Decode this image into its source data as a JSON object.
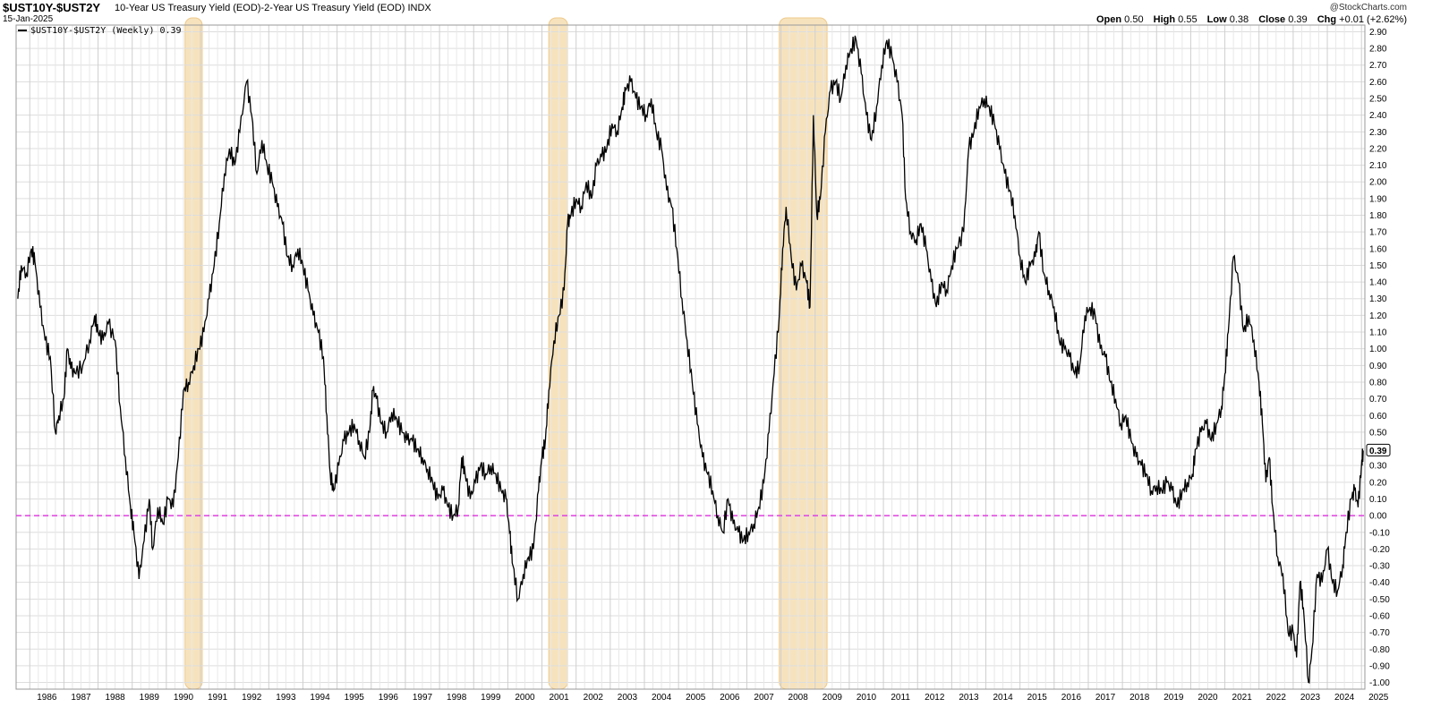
{
  "header": {
    "symbol": "$UST10Y-$UST2Y",
    "description": "10-Year US Treasury Yield (EOD)-2-Year US Treasury Yield (EOD)",
    "exchange": "INDX",
    "date": "15-Jan-2025",
    "credit": "@StockCharts.com",
    "ohlc": {
      "open_label": "Open",
      "open": "0.50",
      "high_label": "High",
      "high": "0.55",
      "low_label": "Low",
      "low": "0.38",
      "close_label": "Close",
      "close": "0.39",
      "chg_label": "Chg",
      "chg": "+0.01 (+2.62%)"
    }
  },
  "legend": {
    "label": "$UST10Y-$UST2Y (Weekly) 0.39"
  },
  "colors": {
    "line": "#000000",
    "recession": "#f5deb3",
    "recession_edge": "#efc98a",
    "zero_line": "#e040e0",
    "grid": "#dddddd"
  },
  "chart_data": {
    "type": "line",
    "title": "$UST10Y-$UST2Y",
    "xlabel": "",
    "ylabel": "",
    "xlim": [
      1985.6,
      2025.1
    ],
    "ylim": [
      -1.04,
      2.94
    ],
    "grid": true,
    "legend_position": "top-left",
    "last_value": "0.39",
    "y_ticks": [
      "2.90",
      "2.80",
      "2.70",
      "2.60",
      "2.50",
      "2.40",
      "2.30",
      "2.20",
      "2.10",
      "2.00",
      "1.90",
      "1.80",
      "1.70",
      "1.60",
      "1.50",
      "1.40",
      "1.30",
      "1.20",
      "1.10",
      "1.00",
      "0.90",
      "0.80",
      "0.70",
      "0.60",
      "0.50",
      "0.40",
      "0.30",
      "0.20",
      "0.10",
      "0.00",
      "-0.10",
      "-0.20",
      "-0.30",
      "-0.40",
      "-0.50",
      "-0.60",
      "-0.70",
      "-0.80",
      "-0.90",
      "-1.00"
    ],
    "x_ticks": [
      "1986",
      "1987",
      "1988",
      "1989",
      "1990",
      "1991",
      "1992",
      "1993",
      "1994",
      "1995",
      "1996",
      "1997",
      "1998",
      "1999",
      "2000",
      "2001",
      "2002",
      "2003",
      "2004",
      "2005",
      "2006",
      "2007",
      "2008",
      "2009",
      "2010",
      "2011",
      "2012",
      "2013",
      "2014",
      "2015",
      "2016",
      "2017",
      "2018",
      "2019",
      "2020",
      "2021",
      "2022",
      "2023",
      "2024",
      "2025"
    ],
    "reference_line": {
      "y": 0.0,
      "style": "dashed"
    },
    "recessions": [
      [
        1990.55,
        1991.05
      ],
      [
        2001.2,
        2001.75
      ],
      [
        2007.95,
        2009.35
      ]
    ],
    "series": [
      {
        "points": [
          [
            1985.65,
            1.3
          ],
          [
            1985.75,
            1.5
          ],
          [
            1985.9,
            1.45
          ],
          [
            1986.05,
            1.6
          ],
          [
            1986.15,
            1.52
          ],
          [
            1986.3,
            1.25
          ],
          [
            1986.45,
            1.05
          ],
          [
            1986.6,
            0.95
          ],
          [
            1986.75,
            0.5
          ],
          [
            1986.85,
            0.6
          ],
          [
            1987.0,
            0.7
          ],
          [
            1987.1,
            1.0
          ],
          [
            1987.2,
            0.88
          ],
          [
            1987.35,
            0.85
          ],
          [
            1987.55,
            0.9
          ],
          [
            1987.75,
            1.05
          ],
          [
            1987.9,
            1.2
          ],
          [
            1988.0,
            1.1
          ],
          [
            1988.15,
            1.05
          ],
          [
            1988.3,
            1.15
          ],
          [
            1988.5,
            1.05
          ],
          [
            1988.65,
            0.65
          ],
          [
            1988.8,
            0.35
          ],
          [
            1988.95,
            0.05
          ],
          [
            1989.05,
            -0.1
          ],
          [
            1989.2,
            -0.38
          ],
          [
            1989.35,
            -0.15
          ],
          [
            1989.5,
            0.1
          ],
          [
            1989.6,
            -0.2
          ],
          [
            1989.75,
            0.05
          ],
          [
            1989.9,
            -0.05
          ],
          [
            1990.05,
            0.1
          ],
          [
            1990.2,
            0.05
          ],
          [
            1990.35,
            0.35
          ],
          [
            1990.5,
            0.75
          ],
          [
            1990.65,
            0.8
          ],
          [
            1990.8,
            0.9
          ],
          [
            1990.95,
            1.0
          ],
          [
            1991.1,
            1.1
          ],
          [
            1991.25,
            1.3
          ],
          [
            1991.4,
            1.5
          ],
          [
            1991.55,
            1.75
          ],
          [
            1991.7,
            2.05
          ],
          [
            1991.85,
            2.2
          ],
          [
            1992.0,
            2.1
          ],
          [
            1992.15,
            2.3
          ],
          [
            1992.35,
            2.6
          ],
          [
            1992.5,
            2.4
          ],
          [
            1992.65,
            2.05
          ],
          [
            1992.8,
            2.25
          ],
          [
            1992.95,
            2.1
          ],
          [
            1993.1,
            2.0
          ],
          [
            1993.25,
            1.85
          ],
          [
            1993.4,
            1.75
          ],
          [
            1993.55,
            1.55
          ],
          [
            1993.7,
            1.5
          ],
          [
            1993.85,
            1.6
          ],
          [
            1994.0,
            1.5
          ],
          [
            1994.15,
            1.35
          ],
          [
            1994.3,
            1.2
          ],
          [
            1994.45,
            1.1
          ],
          [
            1994.6,
            0.95
          ],
          [
            1994.7,
            0.6
          ],
          [
            1994.8,
            0.25
          ],
          [
            1994.9,
            0.15
          ],
          [
            1995.05,
            0.3
          ],
          [
            1995.2,
            0.45
          ],
          [
            1995.35,
            0.5
          ],
          [
            1995.5,
            0.55
          ],
          [
            1995.65,
            0.45
          ],
          [
            1995.8,
            0.35
          ],
          [
            1995.95,
            0.5
          ],
          [
            1996.05,
            0.75
          ],
          [
            1996.15,
            0.7
          ],
          [
            1996.3,
            0.55
          ],
          [
            1996.45,
            0.5
          ],
          [
            1996.6,
            0.62
          ],
          [
            1996.75,
            0.58
          ],
          [
            1996.9,
            0.5
          ],
          [
            1997.05,
            0.45
          ],
          [
            1997.2,
            0.45
          ],
          [
            1997.35,
            0.4
          ],
          [
            1997.5,
            0.35
          ],
          [
            1997.65,
            0.28
          ],
          [
            1997.8,
            0.2
          ],
          [
            1997.95,
            0.1
          ],
          [
            1998.1,
            0.15
          ],
          [
            1998.25,
            0.05
          ],
          [
            1998.4,
            0.0
          ],
          [
            1998.55,
            0.05
          ],
          [
            1998.65,
            0.35
          ],
          [
            1998.75,
            0.25
          ],
          [
            1998.9,
            0.1
          ],
          [
            1999.05,
            0.2
          ],
          [
            1999.2,
            0.3
          ],
          [
            1999.35,
            0.25
          ],
          [
            1999.5,
            0.3
          ],
          [
            1999.65,
            0.25
          ],
          [
            1999.8,
            0.15
          ],
          [
            1999.95,
            0.1
          ],
          [
            2000.05,
            -0.1
          ],
          [
            2000.15,
            -0.3
          ],
          [
            2000.3,
            -0.5
          ],
          [
            2000.45,
            -0.35
          ],
          [
            2000.6,
            -0.25
          ],
          [
            2000.75,
            -0.2
          ],
          [
            2000.9,
            0.15
          ],
          [
            2001.0,
            0.35
          ],
          [
            2001.1,
            0.45
          ],
          [
            2001.2,
            0.75
          ],
          [
            2001.35,
            1.05
          ],
          [
            2001.5,
            1.2
          ],
          [
            2001.65,
            1.35
          ],
          [
            2001.75,
            1.75
          ],
          [
            2001.85,
            1.8
          ],
          [
            2002.0,
            1.9
          ],
          [
            2002.15,
            1.85
          ],
          [
            2002.3,
            2.0
          ],
          [
            2002.45,
            1.9
          ],
          [
            2002.6,
            2.1
          ],
          [
            2002.75,
            2.15
          ],
          [
            2002.9,
            2.2
          ],
          [
            2003.05,
            2.35
          ],
          [
            2003.2,
            2.3
          ],
          [
            2003.35,
            2.45
          ],
          [
            2003.45,
            2.55
          ],
          [
            2003.6,
            2.6
          ],
          [
            2003.75,
            2.5
          ],
          [
            2003.9,
            2.45
          ],
          [
            2004.05,
            2.4
          ],
          [
            2004.2,
            2.5
          ],
          [
            2004.35,
            2.3
          ],
          [
            2004.5,
            2.2
          ],
          [
            2004.65,
            1.95
          ],
          [
            2004.8,
            1.85
          ],
          [
            2004.95,
            1.6
          ],
          [
            2005.1,
            1.3
          ],
          [
            2005.25,
            1.05
          ],
          [
            2005.4,
            0.8
          ],
          [
            2005.55,
            0.55
          ],
          [
            2005.7,
            0.35
          ],
          [
            2005.85,
            0.25
          ],
          [
            2006.0,
            0.15
          ],
          [
            2006.15,
            0.0
          ],
          [
            2006.3,
            -0.1
          ],
          [
            2006.45,
            0.1
          ],
          [
            2006.6,
            -0.05
          ],
          [
            2006.75,
            -0.1
          ],
          [
            2006.9,
            -0.15
          ],
          [
            2007.05,
            -0.1
          ],
          [
            2007.2,
            -0.05
          ],
          [
            2007.35,
            0.05
          ],
          [
            2007.5,
            0.2
          ],
          [
            2007.65,
            0.5
          ],
          [
            2007.8,
            0.85
          ],
          [
            2007.95,
            1.2
          ],
          [
            2008.05,
            1.6
          ],
          [
            2008.15,
            1.85
          ],
          [
            2008.3,
            1.55
          ],
          [
            2008.45,
            1.35
          ],
          [
            2008.6,
            1.5
          ],
          [
            2008.75,
            1.4
          ],
          [
            2008.85,
            1.25
          ],
          [
            2008.95,
            2.4
          ],
          [
            2009.05,
            1.8
          ],
          [
            2009.15,
            1.9
          ],
          [
            2009.3,
            2.3
          ],
          [
            2009.45,
            2.55
          ],
          [
            2009.6,
            2.6
          ],
          [
            2009.75,
            2.5
          ],
          [
            2009.9,
            2.7
          ],
          [
            2010.05,
            2.8
          ],
          [
            2010.2,
            2.85
          ],
          [
            2010.35,
            2.65
          ],
          [
            2010.5,
            2.4
          ],
          [
            2010.65,
            2.25
          ],
          [
            2010.8,
            2.45
          ],
          [
            2010.95,
            2.7
          ],
          [
            2011.1,
            2.85
          ],
          [
            2011.25,
            2.75
          ],
          [
            2011.4,
            2.6
          ],
          [
            2011.55,
            2.4
          ],
          [
            2011.65,
            1.9
          ],
          [
            2011.8,
            1.7
          ],
          [
            2011.95,
            1.65
          ],
          [
            2012.1,
            1.75
          ],
          [
            2012.25,
            1.6
          ],
          [
            2012.4,
            1.4
          ],
          [
            2012.55,
            1.25
          ],
          [
            2012.7,
            1.4
          ],
          [
            2012.85,
            1.35
          ],
          [
            2013.0,
            1.5
          ],
          [
            2013.15,
            1.6
          ],
          [
            2013.35,
            1.7
          ],
          [
            2013.5,
            2.2
          ],
          [
            2013.65,
            2.3
          ],
          [
            2013.8,
            2.45
          ],
          [
            2013.95,
            2.5
          ],
          [
            2014.1,
            2.45
          ],
          [
            2014.25,
            2.35
          ],
          [
            2014.4,
            2.2
          ],
          [
            2014.55,
            2.05
          ],
          [
            2014.7,
            1.95
          ],
          [
            2014.85,
            1.8
          ],
          [
            2015.0,
            1.55
          ],
          [
            2015.15,
            1.4
          ],
          [
            2015.3,
            1.5
          ],
          [
            2015.45,
            1.55
          ],
          [
            2015.55,
            1.7
          ],
          [
            2015.7,
            1.45
          ],
          [
            2015.85,
            1.35
          ],
          [
            2016.0,
            1.25
          ],
          [
            2016.15,
            1.05
          ],
          [
            2016.3,
            1.0
          ],
          [
            2016.45,
            0.95
          ],
          [
            2016.6,
            0.85
          ],
          [
            2016.75,
            0.9
          ],
          [
            2016.9,
            1.2
          ],
          [
            2017.05,
            1.25
          ],
          [
            2017.2,
            1.2
          ],
          [
            2017.35,
            1.0
          ],
          [
            2017.5,
            0.95
          ],
          [
            2017.65,
            0.8
          ],
          [
            2017.8,
            0.7
          ],
          [
            2017.95,
            0.55
          ],
          [
            2018.1,
            0.6
          ],
          [
            2018.25,
            0.45
          ],
          [
            2018.4,
            0.35
          ],
          [
            2018.55,
            0.3
          ],
          [
            2018.7,
            0.25
          ],
          [
            2018.85,
            0.15
          ],
          [
            2019.0,
            0.18
          ],
          [
            2019.15,
            0.15
          ],
          [
            2019.3,
            0.2
          ],
          [
            2019.45,
            0.15
          ],
          [
            2019.6,
            0.05
          ],
          [
            2019.75,
            0.15
          ],
          [
            2019.9,
            0.2
          ],
          [
            2020.05,
            0.25
          ],
          [
            2020.15,
            0.4
          ],
          [
            2020.3,
            0.5
          ],
          [
            2020.45,
            0.55
          ],
          [
            2020.6,
            0.45
          ],
          [
            2020.75,
            0.55
          ],
          [
            2020.9,
            0.65
          ],
          [
            2021.0,
            0.85
          ],
          [
            2021.1,
            1.1
          ],
          [
            2021.25,
            1.55
          ],
          [
            2021.4,
            1.4
          ],
          [
            2021.55,
            1.1
          ],
          [
            2021.7,
            1.2
          ],
          [
            2021.85,
            1.05
          ],
          [
            2022.0,
            0.8
          ],
          [
            2022.1,
            0.55
          ],
          [
            2022.2,
            0.2
          ],
          [
            2022.3,
            0.35
          ],
          [
            2022.4,
            0.05
          ],
          [
            2022.55,
            -0.25
          ],
          [
            2022.7,
            -0.35
          ],
          [
            2022.85,
            -0.7
          ],
          [
            2023.0,
            -0.7
          ],
          [
            2023.1,
            -0.85
          ],
          [
            2023.2,
            -0.4
          ],
          [
            2023.3,
            -0.55
          ],
          [
            2023.45,
            -1.0
          ],
          [
            2023.55,
            -0.8
          ],
          [
            2023.7,
            -0.35
          ],
          [
            2023.85,
            -0.4
          ],
          [
            2024.0,
            -0.2
          ],
          [
            2024.15,
            -0.4
          ],
          [
            2024.3,
            -0.45
          ],
          [
            2024.45,
            -0.3
          ],
          [
            2024.55,
            -0.1
          ],
          [
            2024.7,
            0.1
          ],
          [
            2024.8,
            0.15
          ],
          [
            2024.9,
            0.05
          ],
          [
            2025.0,
            0.3
          ],
          [
            2025.05,
            0.39
          ]
        ]
      }
    ]
  }
}
